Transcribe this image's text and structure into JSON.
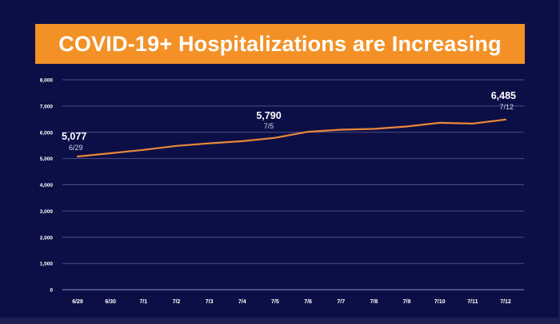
{
  "title": "COVID-19+ Hospitalizations are Increasing",
  "colors": {
    "background": "#0c0f45",
    "banner": "#f39126",
    "line": "#e8873a",
    "grid": "#4a4f86",
    "text": "#ffffff"
  },
  "chart_data": {
    "type": "line",
    "title": "COVID-19+ Hospitalizations are Increasing",
    "xlabel": "",
    "ylabel": "",
    "categories": [
      "6/29",
      "6/30",
      "7/1",
      "7/2",
      "7/3",
      "7/4",
      "7/5",
      "7/6",
      "7/7",
      "7/8",
      "7/9",
      "7/10",
      "7/11",
      "7/12"
    ],
    "yticks": [
      "0",
      "1,000",
      "2,000",
      "3,000",
      "4,000",
      "5,000",
      "6,000",
      "7,000",
      "8,000"
    ],
    "ylim": [
      0,
      8000
    ],
    "grid": true,
    "series": [
      {
        "values": [
          5077,
          5200,
          5330,
          5480,
          5580,
          5660,
          5790,
          6020,
          6100,
          6130,
          6220,
          6360,
          6330,
          6485
        ]
      }
    ],
    "annotations": [
      {
        "index": 0,
        "value": "5,077",
        "date": "6/29"
      },
      {
        "index": 6,
        "value": "5,790",
        "date": "7/5"
      },
      {
        "index": 13,
        "value": "6,485",
        "date": "7/12"
      }
    ]
  }
}
